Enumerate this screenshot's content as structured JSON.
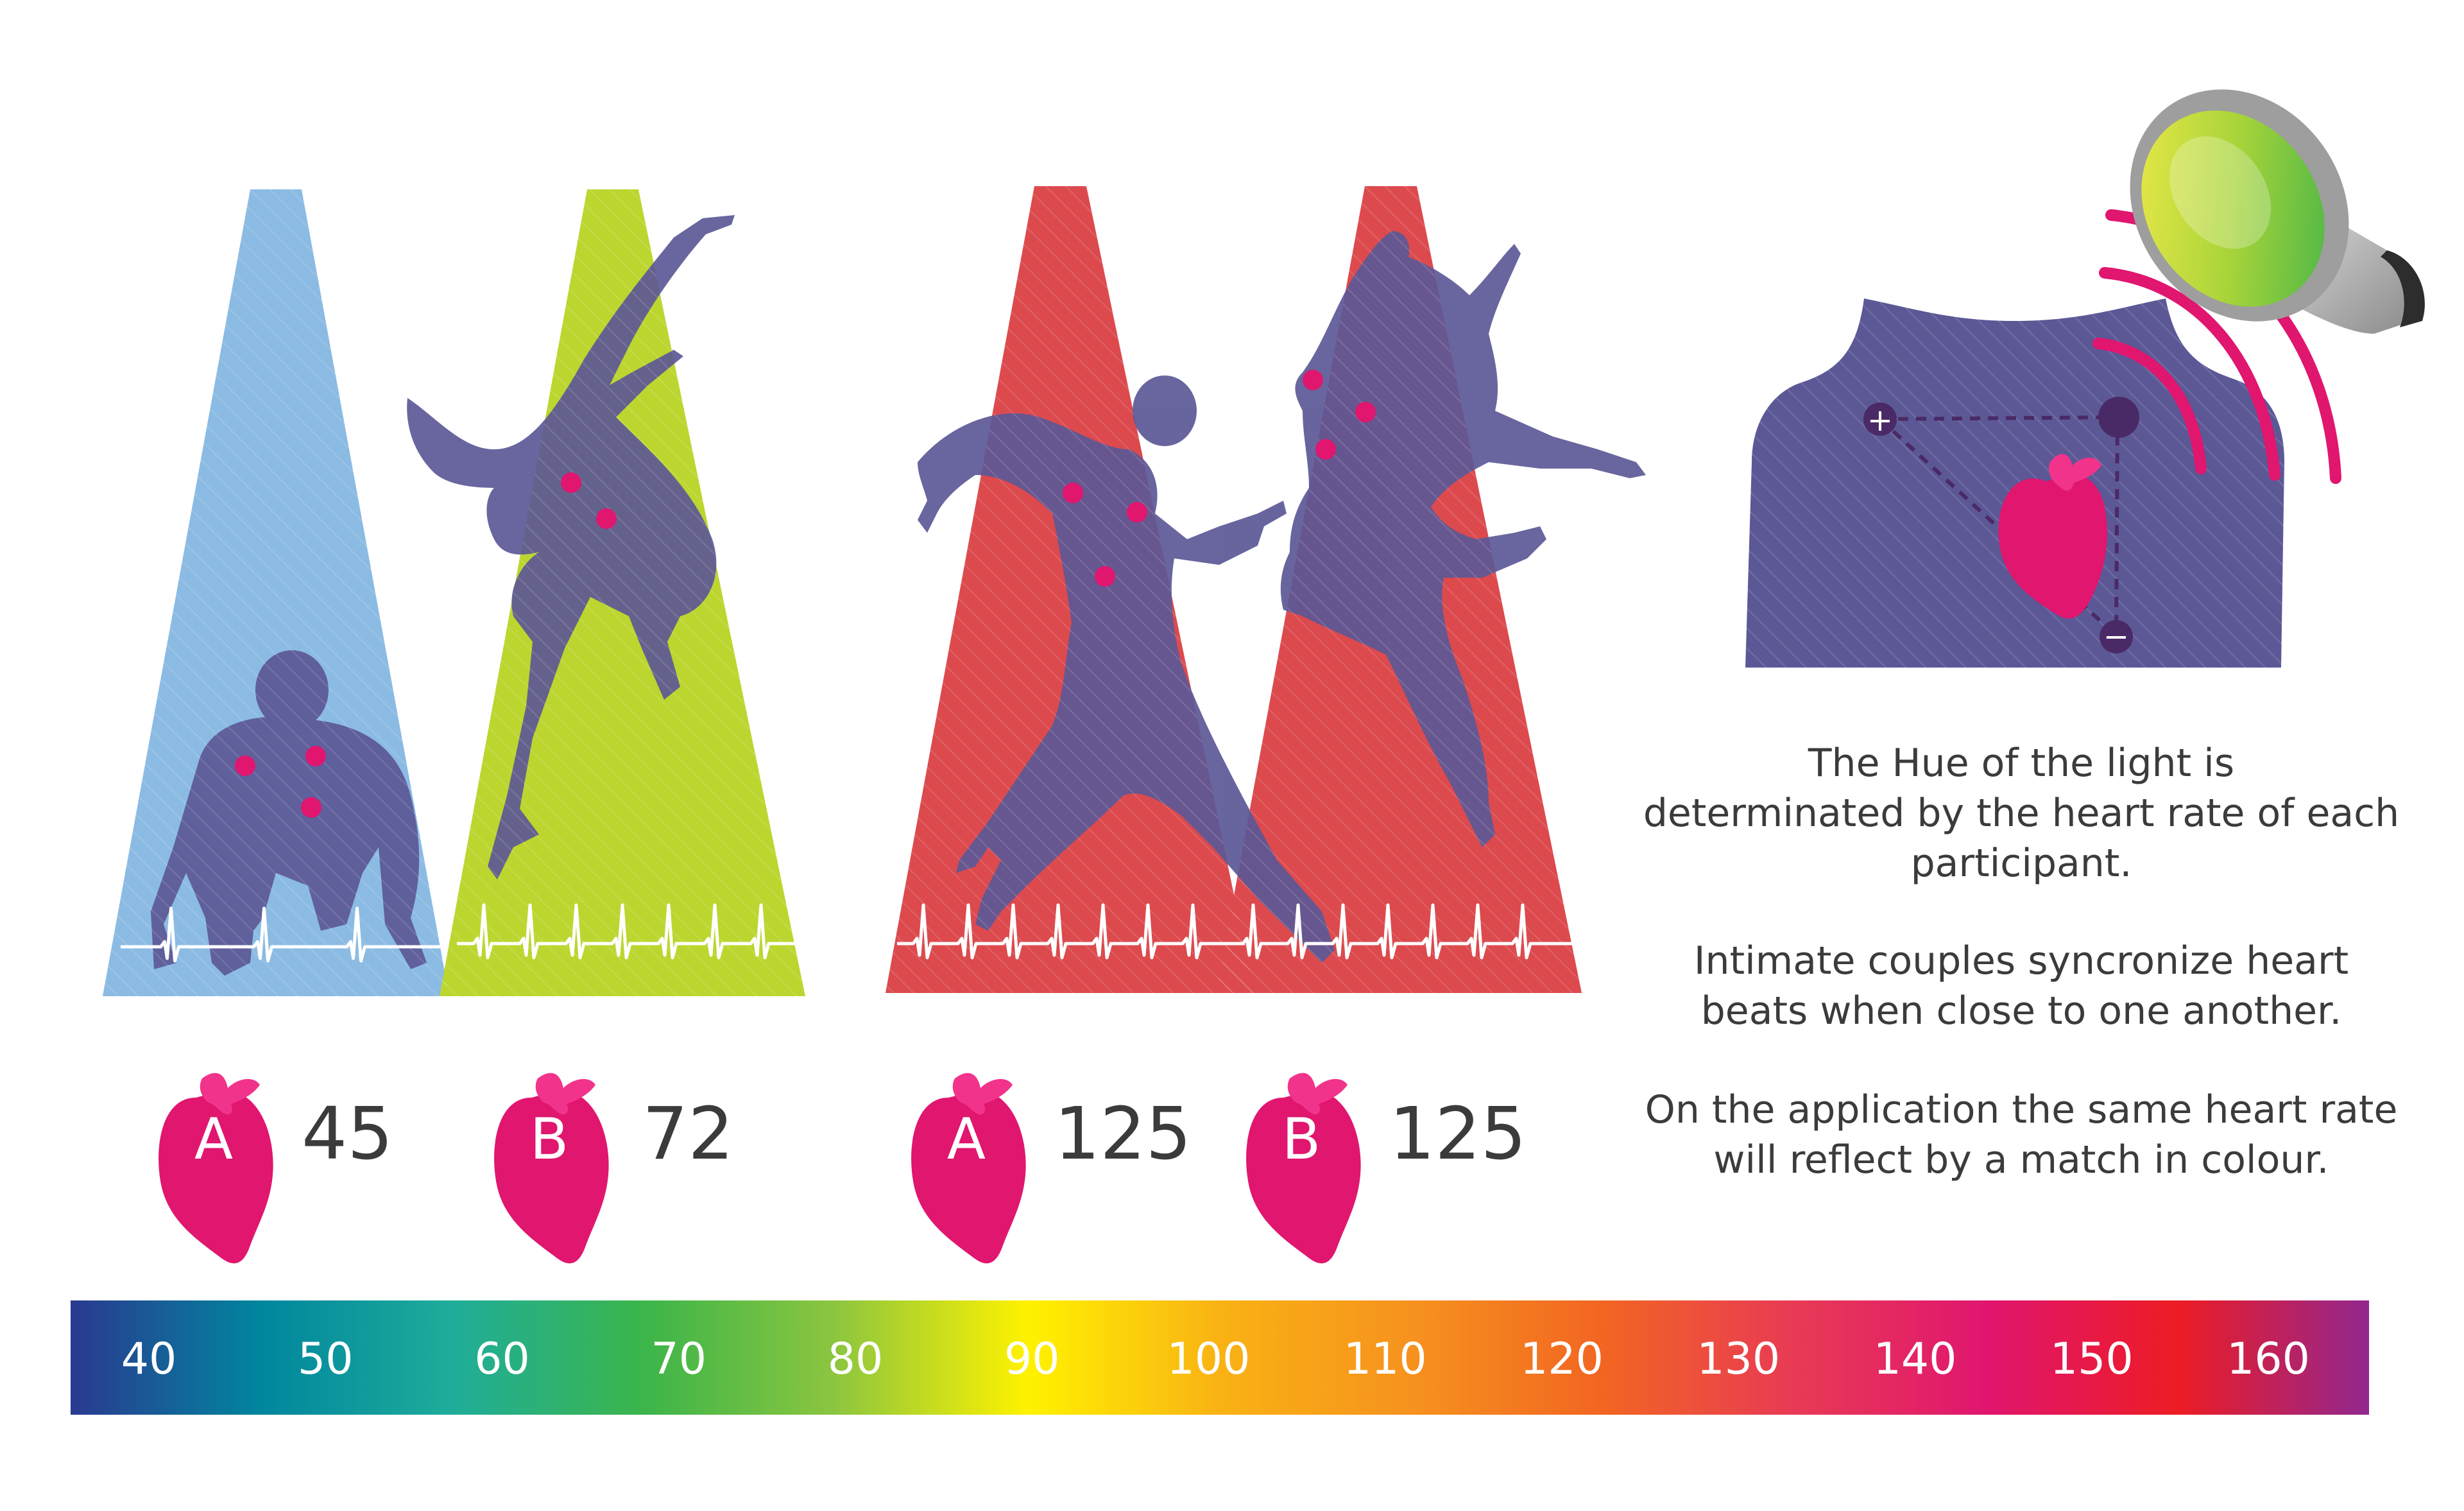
{
  "participants": [
    {
      "letter": "A",
      "bpm": "45",
      "beam_color": "#8bbbe3"
    },
    {
      "letter": "B",
      "bpm": "72",
      "beam_color": "#bcd62f"
    },
    {
      "letter": "A",
      "bpm": "125",
      "beam_color": "#dc4a4e"
    },
    {
      "letter": "B",
      "bpm": "125",
      "beam_color": "#dc4a4e"
    }
  ],
  "description": {
    "p1": [
      "The Hue of the light is",
      "determinated by the heart rate of each",
      "participant."
    ],
    "p2": [
      "Intimate couples syncronize heart",
      "beats when close to one another."
    ],
    "p3": [
      "On the application the same heart rate",
      "will reflect by a match in colour."
    ]
  },
  "electrodes": {
    "plus": "+",
    "minus": "−"
  },
  "scale": {
    "labels": [
      "40",
      "50",
      "60",
      "70",
      "80",
      "90",
      "100",
      "110",
      "120",
      "130",
      "140",
      "150",
      "160"
    ],
    "gradient_stops": [
      "#2b3990",
      "#00869e",
      "#1fad9a",
      "#3cb54a",
      "#8dc63f",
      "#fff200",
      "#f9b214",
      "#f6921e",
      "#f26522",
      "#e83a55",
      "#e0166f",
      "#ed1c24",
      "#92278f"
    ]
  },
  "colors": {
    "silhouette": "#5c5896",
    "heart": "#e0166f",
    "heart_bow": "#f2338b",
    "text": "#3b3b3b",
    "ecg": "#ffffff",
    "signal": "#e0166f"
  }
}
